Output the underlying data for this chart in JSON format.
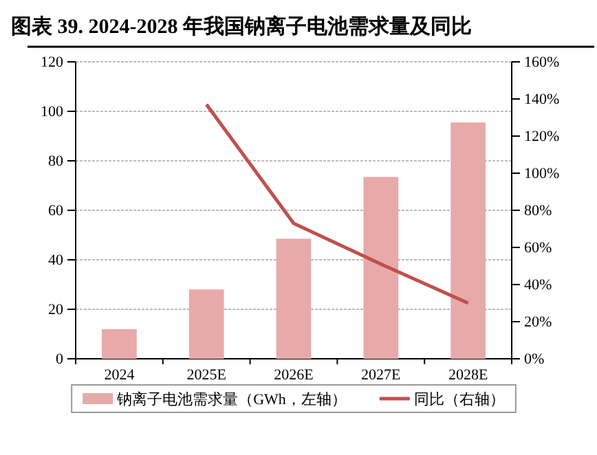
{
  "chart_data": {
    "type": "bar",
    "title": "图表 39. 2024-2028 年我国钠离子电池需求量及同比",
    "categories": [
      "2024",
      "2025E",
      "2026E",
      "2027E",
      "2028E"
    ],
    "series": [
      {
        "name": "钠离子电池需求量（GWh，左轴）",
        "color": "#e8a9a9",
        "values": [
          12,
          28,
          48.5,
          73.5,
          95.5
        ]
      },
      {
        "name": "同比（右轴）",
        "type": "line",
        "axis": "y2",
        "color": "#c0504d",
        "values": [
          null,
          137,
          73,
          51,
          30
        ]
      }
    ],
    "ylim": [
      0,
      120
    ],
    "yticks": [
      0,
      20,
      40,
      60,
      80,
      100,
      120
    ],
    "y2lim": [
      0,
      160
    ],
    "y2ticks": [
      {
        "value": 0,
        "label": "0%"
      },
      {
        "value": 20,
        "label": "20%"
      },
      {
        "value": 40,
        "label": "40%"
      },
      {
        "value": 60,
        "label": "60%"
      },
      {
        "value": 80,
        "label": "80%"
      },
      {
        "value": 100,
        "label": "100%"
      },
      {
        "value": 120,
        "label": "120%"
      },
      {
        "value": 140,
        "label": "140%"
      },
      {
        "value": 160,
        "label": "160%"
      }
    ],
    "grid": "y",
    "legend": "bottom",
    "marker": "none",
    "line_style": "solid"
  }
}
